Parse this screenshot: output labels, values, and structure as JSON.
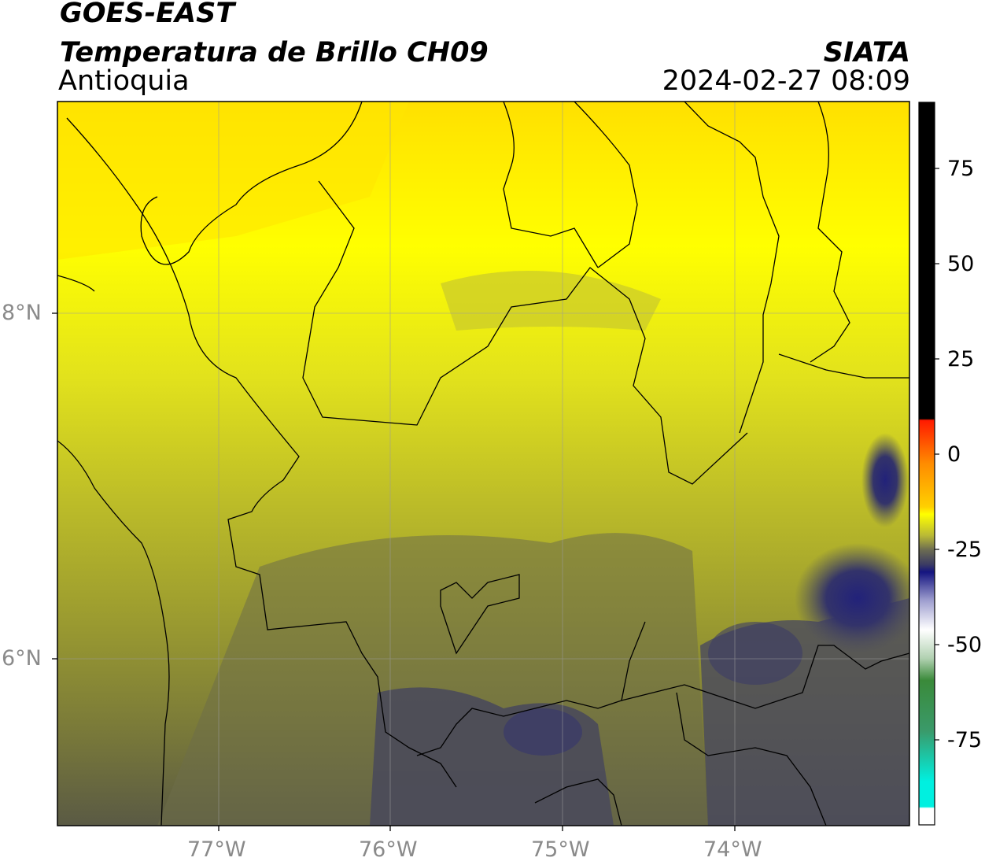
{
  "header": {
    "satellite": "GOES-EAST",
    "product": "Temperatura de Brillo CH09",
    "region": "Antioquia",
    "organization": "SIATA",
    "timestamp": "2024-02-27 08:09"
  },
  "axes": {
    "longitude_ticks": [
      "77°W",
      "76°W",
      "75°W",
      "74°W"
    ],
    "latitude_ticks": [
      "8°N",
      "6°N"
    ]
  },
  "colorbar": {
    "tick_labels": [
      "75",
      "50",
      "25",
      "0",
      "-25",
      "-50",
      "-75"
    ],
    "colors": {
      "hot": "#000000",
      "red": "#ff1a00",
      "orange": "#ff9900",
      "yellow": "#ffff00",
      "olive": "#a6a633",
      "slate": "#4a4a5e",
      "navy": "#141480",
      "pale": "#e8e8f0",
      "green": "#3a8a3a",
      "cyan": "#00f0e0"
    }
  }
}
